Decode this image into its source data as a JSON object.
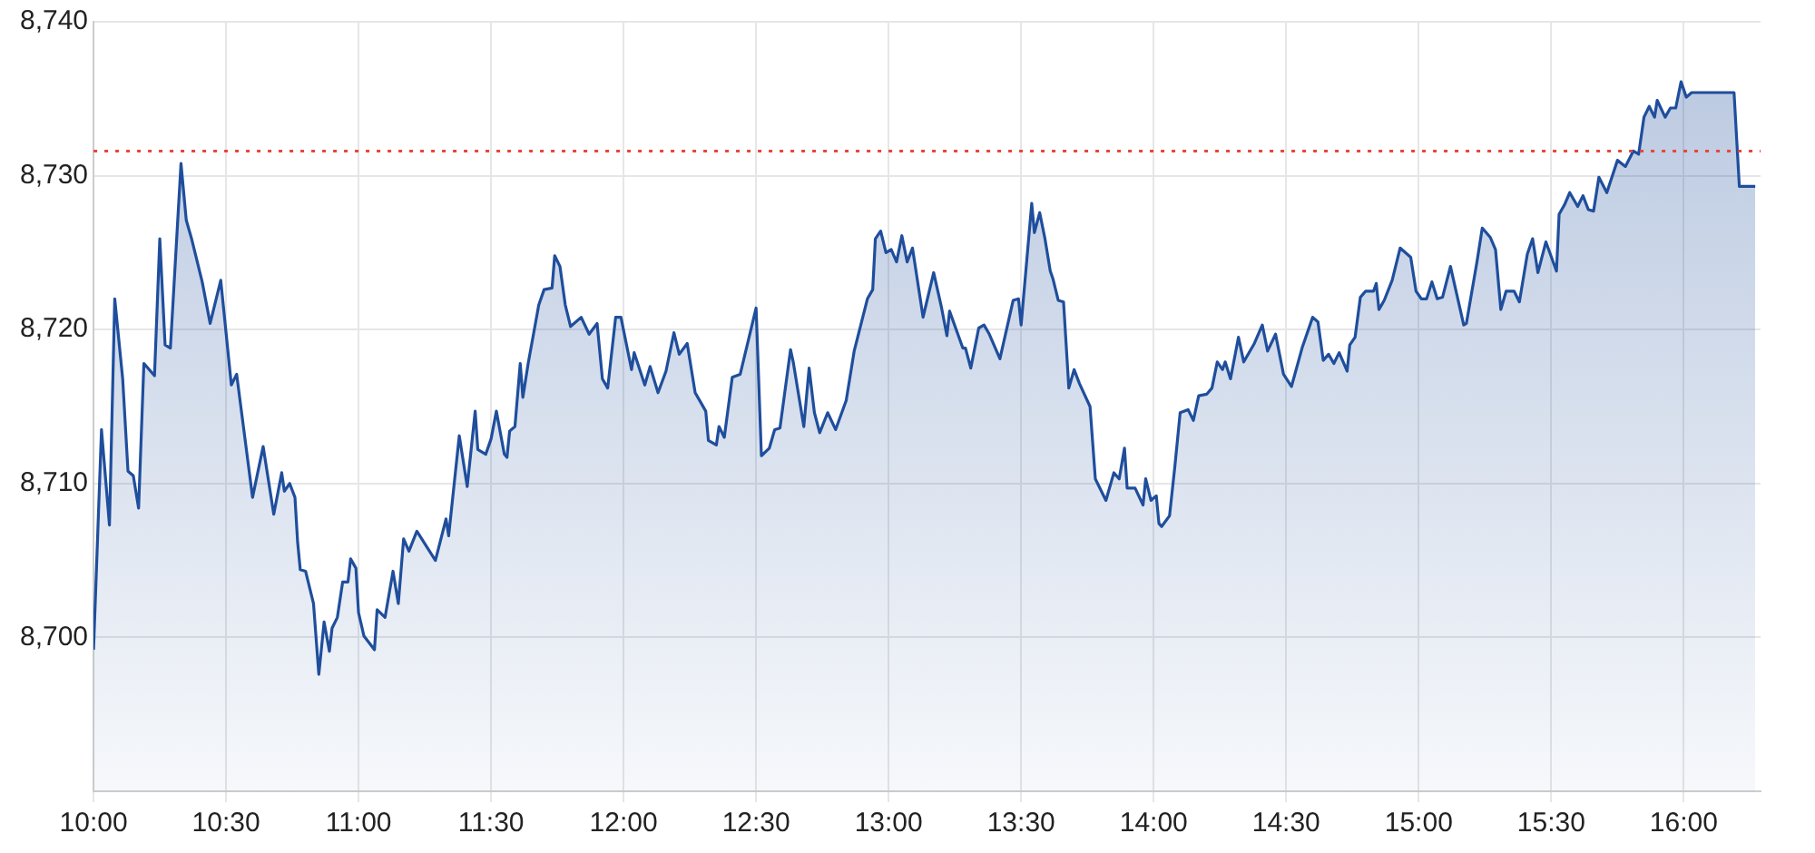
{
  "chart_data": {
    "type": "area",
    "x": [
      10.0,
      10.03,
      10.06,
      10.08,
      10.11,
      10.13,
      10.15,
      10.17,
      10.19,
      10.23,
      10.25,
      10.27,
      10.29,
      10.33,
      10.35,
      10.37,
      10.41,
      10.44,
      10.48,
      10.52,
      10.54,
      10.6,
      10.64,
      10.68,
      10.71,
      10.72,
      10.74,
      10.76,
      10.77,
      10.78,
      10.8,
      10.83,
      10.85,
      10.87,
      10.89,
      10.9,
      10.92,
      10.94,
      10.96,
      10.97,
      10.99,
      11.0,
      11.02,
      11.06,
      11.07,
      11.1,
      11.13,
      11.15,
      11.17,
      11.19,
      11.22,
      11.29,
      11.33,
      11.34,
      11.38,
      11.41,
      11.44,
      11.45,
      11.48,
      11.5,
      11.52,
      11.55,
      11.56,
      11.57,
      11.59,
      11.61,
      11.62,
      11.64,
      11.68,
      11.7,
      11.73,
      11.74,
      11.76,
      11.78,
      11.8,
      11.84,
      11.87,
      11.9,
      11.92,
      11.94,
      11.97,
      11.99,
      12.03,
      12.04,
      12.08,
      12.1,
      12.13,
      12.16,
      12.19,
      12.21,
      12.24,
      12.27,
      12.29,
      12.31,
      12.32,
      12.35,
      12.36,
      12.38,
      12.41,
      12.44,
      12.5,
      12.52,
      12.55,
      12.57,
      12.59,
      12.63,
      12.64,
      12.68,
      12.7,
      12.72,
      12.74,
      12.77,
      12.8,
      12.84,
      12.87,
      12.92,
      12.94,
      12.95,
      12.97,
      12.99,
      13.01,
      13.03,
      13.05,
      13.07,
      13.09,
      13.13,
      13.17,
      13.2,
      13.22,
      13.23,
      13.28,
      13.29,
      13.31,
      13.34,
      13.36,
      13.38,
      13.42,
      13.47,
      13.49,
      13.5,
      13.54,
      13.55,
      13.57,
      13.59,
      13.61,
      13.62,
      13.64,
      13.66,
      13.68,
      13.7,
      13.72,
      13.76,
      13.78,
      13.82,
      13.85,
      13.87,
      13.89,
      13.9,
      13.93,
      13.96,
      13.97,
      13.99,
      14.01,
      14.02,
      14.03,
      14.06,
      14.08,
      14.1,
      14.13,
      14.15,
      14.17,
      14.2,
      14.22,
      14.24,
      14.26,
      14.27,
      14.29,
      14.32,
      14.34,
      14.38,
      14.41,
      14.43,
      14.46,
      14.49,
      14.52,
      14.56,
      14.6,
      14.62,
      14.64,
      14.66,
      14.68,
      14.7,
      14.73,
      14.74,
      14.76,
      14.78,
      14.8,
      14.83,
      14.84,
      14.85,
      14.87,
      14.9,
      14.93,
      14.97,
      14.99,
      15.01,
      15.03,
      15.05,
      15.07,
      15.09,
      15.12,
      15.17,
      15.18,
      15.22,
      15.24,
      15.27,
      15.29,
      15.31,
      15.33,
      15.36,
      15.38,
      15.41,
      15.43,
      15.45,
      15.48,
      15.52,
      15.53,
      15.55,
      15.57,
      15.6,
      15.62,
      15.64,
      15.66,
      15.68,
      15.71,
      15.75,
      15.78,
      15.81,
      15.83,
      15.85,
      15.87,
      15.89,
      15.9,
      15.93,
      15.95,
      15.97,
      15.99,
      16.01,
      16.03,
      16.19,
      16.21,
      16.27
    ],
    "series": [
      {
        "color": "#1f4e9c",
        "values": [
          8699.2,
          8713.5,
          8707.3,
          8722.0,
          8716.8,
          8710.8,
          8710.5,
          8708.4,
          8717.8,
          8717.0,
          8725.9,
          8719.0,
          8718.8,
          8730.8,
          8727.1,
          8725.9,
          8723.1,
          8720.4,
          8723.2,
          8716.4,
          8717.1,
          8709.1,
          8712.4,
          8708.0,
          8710.7,
          8709.5,
          8710.0,
          8709.1,
          8706.2,
          8704.4,
          8704.3,
          8702.2,
          8697.6,
          8701.0,
          8699.1,
          8700.6,
          8701.3,
          8703.6,
          8703.6,
          8705.1,
          8704.5,
          8701.6,
          8700.1,
          8699.2,
          8701.8,
          8701.3,
          8704.3,
          8702.2,
          8706.4,
          8705.6,
          8706.9,
          8705.0,
          8707.7,
          8706.6,
          8713.1,
          8709.8,
          8714.7,
          8712.2,
          8711.9,
          8712.9,
          8714.7,
          8711.9,
          8711.7,
          8713.4,
          8713.7,
          8717.8,
          8715.6,
          8717.8,
          8721.6,
          8722.6,
          8722.7,
          8724.8,
          8724.1,
          8721.6,
          8720.2,
          8720.8,
          8719.7,
          8720.4,
          8716.8,
          8716.2,
          8720.8,
          8720.8,
          8717.4,
          8718.5,
          8716.4,
          8717.6,
          8715.9,
          8717.3,
          8719.8,
          8718.4,
          8719.1,
          8715.9,
          8715.3,
          8714.7,
          8712.8,
          8712.5,
          8713.7,
          8713.0,
          8716.9,
          8717.1,
          8721.4,
          8711.8,
          8712.3,
          8713.5,
          8713.6,
          8718.7,
          8717.9,
          8713.7,
          8717.5,
          8714.6,
          8713.3,
          8714.6,
          8713.5,
          8715.4,
          8718.6,
          8722.0,
          8722.6,
          8725.9,
          8726.4,
          8725.0,
          8725.2,
          8724.4,
          8726.1,
          8724.4,
          8725.3,
          8720.8,
          8723.7,
          8721.4,
          8719.6,
          8721.2,
          8718.8,
          8718.8,
          8717.5,
          8720.1,
          8720.3,
          8719.7,
          8718.1,
          8721.9,
          8722.0,
          8720.3,
          8728.2,
          8726.3,
          8727.6,
          8725.9,
          8723.8,
          8723.3,
          8721.9,
          8721.8,
          8716.2,
          8717.4,
          8716.5,
          8715.0,
          8710.3,
          8708.9,
          8710.7,
          8710.3,
          8712.3,
          8709.7,
          8709.7,
          8708.6,
          8710.3,
          8708.9,
          8709.2,
          8707.4,
          8707.2,
          8707.9,
          8711.1,
          8714.6,
          8714.8,
          8714.1,
          8715.7,
          8715.8,
          8716.2,
          8717.9,
          8717.4,
          8717.9,
          8716.8,
          8719.5,
          8717.9,
          8719.1,
          8720.3,
          8718.6,
          8719.7,
          8717.1,
          8716.3,
          8718.8,
          8720.8,
          8720.5,
          8718.0,
          8718.4,
          8717.8,
          8718.5,
          8717.3,
          8719.0,
          8719.5,
          8722.1,
          8722.5,
          8722.5,
          8723.0,
          8721.3,
          8721.9,
          8723.2,
          8725.3,
          8724.7,
          8722.5,
          8722.0,
          8722.0,
          8723.1,
          8722.0,
          8722.1,
          8724.1,
          8720.3,
          8720.4,
          8724.4,
          8726.6,
          8726.0,
          8725.2,
          8721.3,
          8722.5,
          8722.5,
          8721.8,
          8724.9,
          8725.9,
          8723.7,
          8725.7,
          8723.8,
          8727.5,
          8728.1,
          8728.9,
          8728.0,
          8728.7,
          8727.8,
          8727.7,
          8729.9,
          8728.9,
          8731.0,
          8730.6,
          8731.6,
          8731.4,
          8733.8,
          8734.5,
          8733.8,
          8734.9,
          8733.8,
          8734.4,
          8734.4,
          8736.1,
          8735.1,
          8735.4,
          8735.4,
          8729.3,
          8729.3
        ]
      }
    ],
    "xlim": [
      10.0,
      16.29
    ],
    "xticks": [
      {
        "value": 10,
        "label": "10:00"
      },
      {
        "value": 10.5,
        "label": "10:30"
      },
      {
        "value": 11,
        "label": "11:00"
      },
      {
        "value": 11.5,
        "label": "11:30"
      },
      {
        "value": 12,
        "label": "12:00"
      },
      {
        "value": 12.5,
        "label": "12:30"
      },
      {
        "value": 13,
        "label": "13:00"
      },
      {
        "value": 13.5,
        "label": "13:30"
      },
      {
        "value": 14,
        "label": "14:00"
      },
      {
        "value": 14.5,
        "label": "14:30"
      },
      {
        "value": 15,
        "label": "15:00"
      },
      {
        "value": 15.5,
        "label": "15:30"
      },
      {
        "value": 16,
        "label": "16:00"
      }
    ],
    "ylim": [
      8690,
      8740
    ],
    "yticks": [
      {
        "value": 8700,
        "label": "8,700"
      },
      {
        "value": 8710,
        "label": "8,710"
      },
      {
        "value": 8720,
        "label": "8,720"
      },
      {
        "value": 8730,
        "label": "8,730"
      },
      {
        "value": 8740,
        "label": "8,740"
      }
    ],
    "ref_lines": [
      {
        "axis": "y",
        "value": 8731.6,
        "color": "#e8453c",
        "line_style": "dotted"
      }
    ],
    "grid": true,
    "legend": false,
    "marker": "none"
  }
}
